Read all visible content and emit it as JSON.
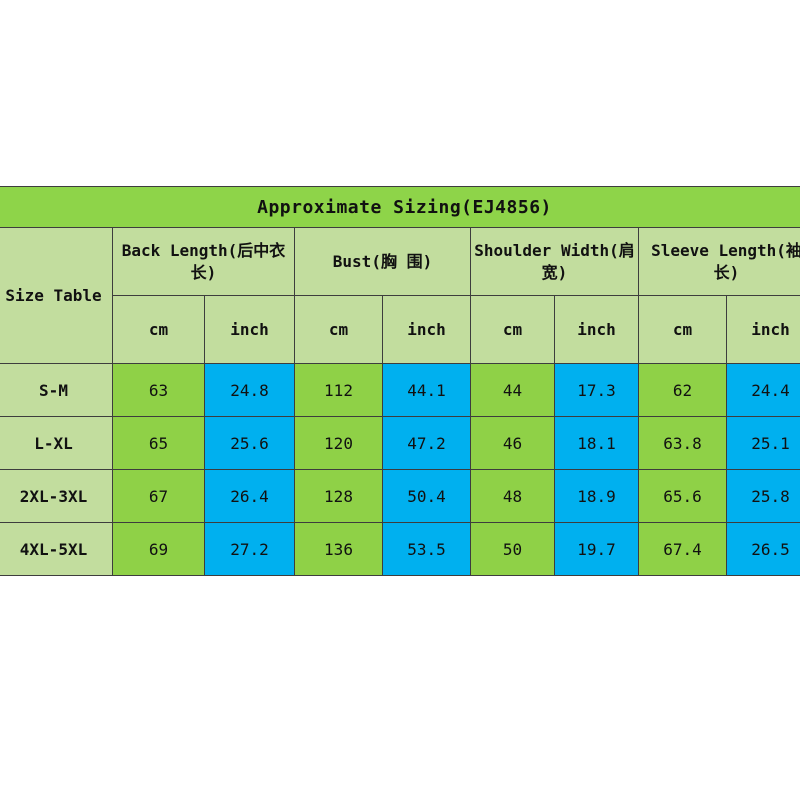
{
  "title": "Approximate Sizing(EJ4856)",
  "size_table_label": "Size Table",
  "columns": [
    {
      "label": "Back Length(后中衣长)",
      "units": [
        "cm",
        "inch"
      ]
    },
    {
      "label": "Bust(胸 围)",
      "units": [
        "cm",
        "inch"
      ]
    },
    {
      "label": "Shoulder Width(肩宽)",
      "units": [
        "cm",
        "inch"
      ]
    },
    {
      "label": "Sleeve Length(袖长)",
      "units": [
        "cm",
        "inch"
      ]
    }
  ],
  "rows": [
    {
      "size": "S-M",
      "values": [
        "63",
        "24.8",
        "112",
        "44.1",
        "44",
        "17.3",
        "62",
        "24.4"
      ]
    },
    {
      "size": "L-XL",
      "values": [
        "65",
        "25.6",
        "120",
        "47.2",
        "46",
        "18.1",
        "63.8",
        "25.1"
      ]
    },
    {
      "size": "2XL-3XL",
      "values": [
        "67",
        "26.4",
        "128",
        "50.4",
        "48",
        "18.9",
        "65.6",
        "25.8"
      ]
    },
    {
      "size": "4XL-5XL",
      "values": [
        "69",
        "27.2",
        "136",
        "53.5",
        "50",
        "19.7",
        "67.4",
        "26.5"
      ]
    }
  ],
  "colors": {
    "title_bg": "#8ed449",
    "header_bg": "#c2dd9e",
    "cm_bg": "#8fd147",
    "inch_bg": "#00b0ef"
  }
}
